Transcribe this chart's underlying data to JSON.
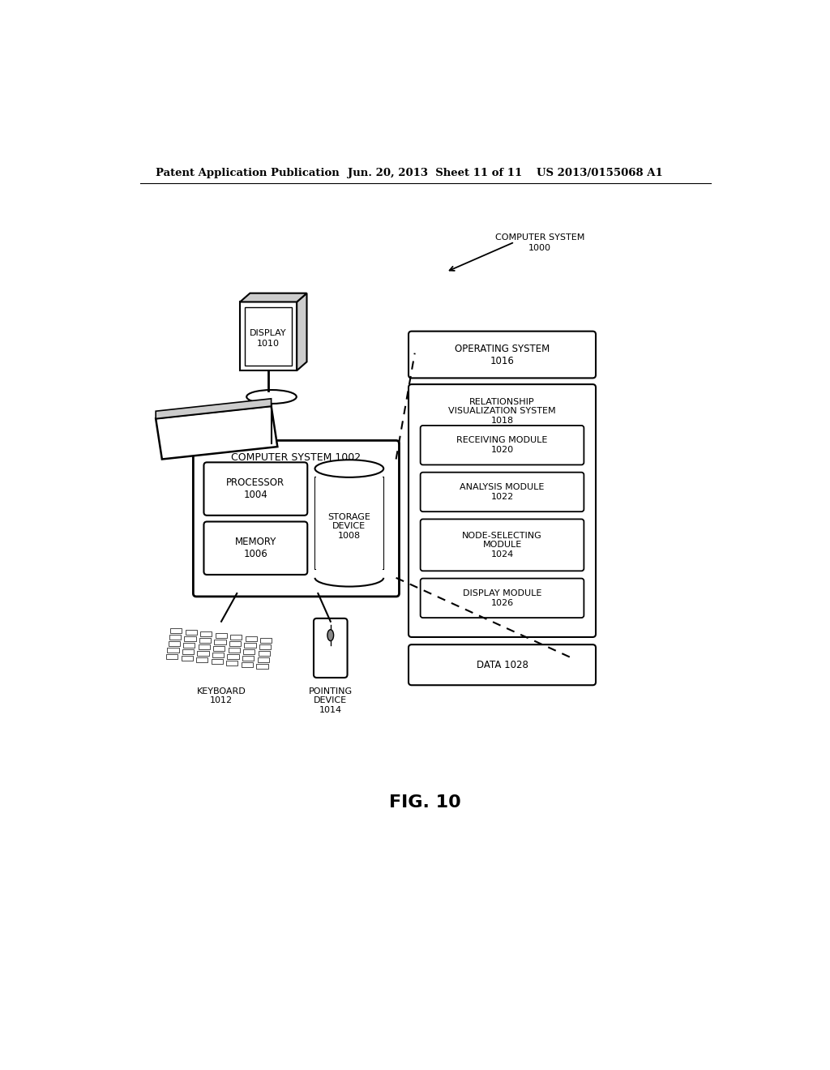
{
  "header_left": "Patent Application Publication",
  "header_mid": "Jun. 20, 2013  Sheet 11 of 11",
  "header_right": "US 2013/0155068 A1",
  "computer_system_label": "COMPUTER SYSTEM",
  "computer_system_num": "1000",
  "fig_caption": "FIG. 10",
  "cs_box_label": "COMPUTER SYSTEM 1002",
  "processor_label": "PROCESSOR\n1004",
  "memory_label": "MEMORY\n1006",
  "storage_label": "STORAGE\nDEVICE\n1008",
  "display_label": "DISPLAY\n1010",
  "keyboard_label": "KEYBOARD\n1012",
  "pointing_label": "POINTING\nDEVICE\n1014",
  "os_label": "OPERATING SYSTEM\n1016",
  "rvs_label": "RELATIONSHIP\nVISUALIZATION SYSTEM\n1018",
  "recv_label": "RECEIVING MODULE\n1020",
  "analysis_label": "ANALYSIS MODULE\n1022",
  "node_label": "NODE-SELECTING\nMODULE\n1024",
  "display_mod_label": "DISPLAY MODULE\n1026",
  "data_label": "DATA 1028",
  "bg_color": "#ffffff",
  "box_color": "#000000",
  "text_color": "#000000"
}
